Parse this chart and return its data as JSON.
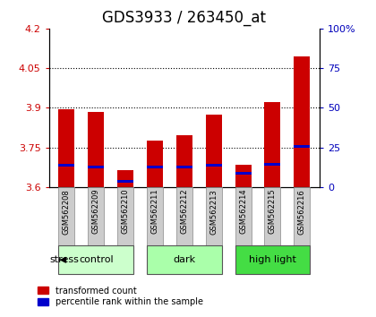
{
  "title": "GDS3933 / 263450_at",
  "samples": [
    "GSM562208",
    "GSM562209",
    "GSM562210",
    "GSM562211",
    "GSM562212",
    "GSM562213",
    "GSM562214",
    "GSM562215",
    "GSM562216"
  ],
  "red_tops": [
    3.895,
    3.885,
    3.665,
    3.775,
    3.795,
    3.875,
    3.685,
    3.92,
    4.095
  ],
  "blue_tops": [
    3.688,
    3.682,
    3.628,
    3.682,
    3.68,
    3.688,
    3.658,
    3.69,
    3.76
  ],
  "blue_bottoms": [
    3.678,
    3.672,
    3.618,
    3.672,
    3.67,
    3.678,
    3.648,
    3.68,
    3.75
  ],
  "ymin": 3.6,
  "ymax": 4.2,
  "yticks": [
    3.6,
    3.75,
    3.9,
    4.05,
    4.2
  ],
  "ytick_labels": [
    "3.6",
    "3.75",
    "3.9",
    "4.05",
    "4.2"
  ],
  "right_yticks": [
    0,
    25,
    50,
    75,
    100
  ],
  "right_ytick_labels": [
    "0",
    "25",
    "50",
    "75",
    "100%"
  ],
  "groups": [
    {
      "label": "control",
      "indices": [
        0,
        1,
        2
      ],
      "color": "#ccffcc"
    },
    {
      "label": "dark",
      "indices": [
        3,
        4,
        5
      ],
      "color": "#aaffaa"
    },
    {
      "label": "high light",
      "indices": [
        6,
        7,
        8
      ],
      "color": "#44dd44"
    }
  ],
  "bar_width": 0.55,
  "bar_color_red": "#cc0000",
  "bar_color_blue": "#0000cc",
  "title_fontsize": 12,
  "axis_color_red": "#cc0000",
  "axis_color_blue": "#0000bb",
  "sample_label_bg": "#cccccc",
  "sample_label_fontsize": 6
}
